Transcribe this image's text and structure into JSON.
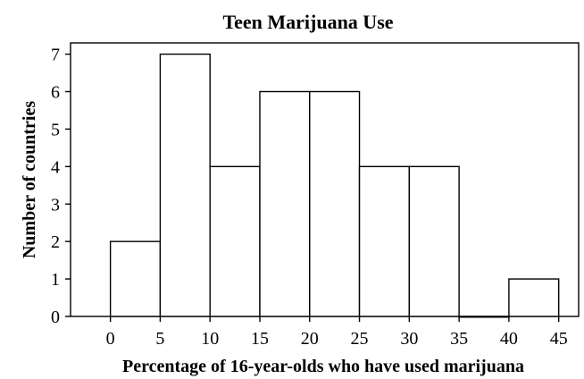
{
  "chart_data": {
    "type": "bar",
    "title": "Teen Marijuana Use",
    "xlabel": "Percentage of 16-year-olds who have used marijuana",
    "ylabel": "Number of countries",
    "bins": [
      {
        "start": 0,
        "end": 5,
        "count": 2
      },
      {
        "start": 5,
        "end": 10,
        "count": 7
      },
      {
        "start": 10,
        "end": 15,
        "count": 4
      },
      {
        "start": 15,
        "end": 20,
        "count": 6
      },
      {
        "start": 20,
        "end": 25,
        "count": 6
      },
      {
        "start": 25,
        "end": 30,
        "count": 4
      },
      {
        "start": 30,
        "end": 35,
        "count": 4
      },
      {
        "start": 35,
        "end": 40,
        "count": 0
      },
      {
        "start": 40,
        "end": 45,
        "count": 1
      }
    ],
    "x_ticks": [
      0,
      5,
      10,
      15,
      20,
      25,
      30,
      35,
      40,
      45
    ],
    "y_ticks": [
      0,
      1,
      2,
      3,
      4,
      5,
      6,
      7
    ],
    "xlim": [
      -4,
      47
    ],
    "ylim": [
      0,
      7.3
    ],
    "grid": false,
    "colors": {
      "bar_fill": "#ffffff",
      "bar_stroke": "#000000",
      "text": "#000000"
    }
  }
}
